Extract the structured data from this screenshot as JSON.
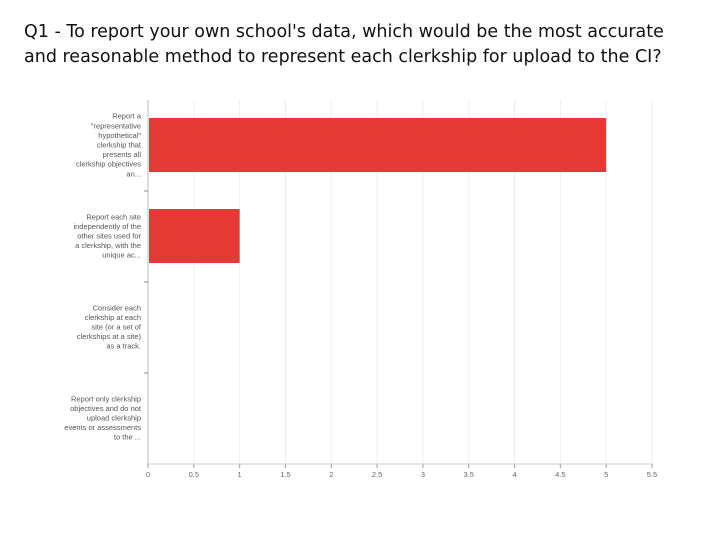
{
  "title": "Q1 - To report your own school's data, which would be the most accurate and reasonable method to represent each clerkship for upload to the CI?",
  "chart_data": {
    "type": "bar",
    "orientation": "horizontal",
    "categories": [
      [
        "Report a",
        "\"representative",
        "hypothetical\"",
        "clerkship that",
        "presents all",
        "clerkship objectives",
        "an..."
      ],
      [
        "Report each site",
        "independently of the",
        "other sites used for",
        "a clerkship, with the",
        "unique ac..."
      ],
      [
        "Consider each",
        "clerkship at each",
        "site (or a set of",
        "clerkships at a site)",
        "as a track."
      ],
      [
        "Report only clerkship",
        "objectives and do not",
        "upload clerkship",
        "events or assessments",
        "to the ..."
      ]
    ],
    "values": [
      5,
      1,
      0,
      0
    ],
    "xlim": [
      0,
      5.5
    ],
    "xticks": [
      "0",
      "0.5",
      "1",
      "1.5",
      "2",
      "2.5",
      "3",
      "3.5",
      "4",
      "4.5",
      "5",
      "5.5"
    ],
    "bar_color": "#e53935",
    "grid": true
  }
}
